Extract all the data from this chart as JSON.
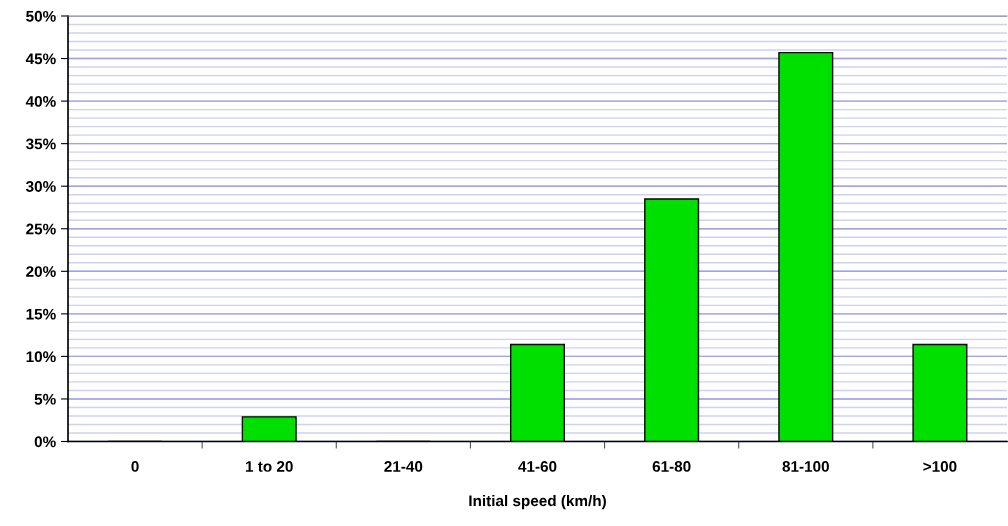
{
  "chart_data": {
    "type": "bar",
    "xlabel": "Initial speed (km/h)",
    "categories": [
      "0",
      "1 to 20",
      "21-40",
      "41-60",
      "61-80",
      "81-100",
      ">100"
    ],
    "values": [
      0,
      2.9,
      0,
      11.4,
      28.5,
      45.7,
      11.4
    ],
    "color": "#00e000",
    "ylim": [
      0,
      50
    ],
    "yticks": [
      {
        "value": 0,
        "label": "0%"
      },
      {
        "value": 5,
        "label": "5%"
      },
      {
        "value": 10,
        "label": "10%"
      },
      {
        "value": 15,
        "label": "15%"
      },
      {
        "value": 20,
        "label": "20%"
      },
      {
        "value": 25,
        "label": "25%"
      },
      {
        "value": 30,
        "label": "30%"
      },
      {
        "value": 35,
        "label": "35%"
      },
      {
        "value": 40,
        "label": "40%"
      },
      {
        "value": 45,
        "label": "45%"
      },
      {
        "value": 50,
        "label": "50%"
      }
    ],
    "grid": "y"
  }
}
